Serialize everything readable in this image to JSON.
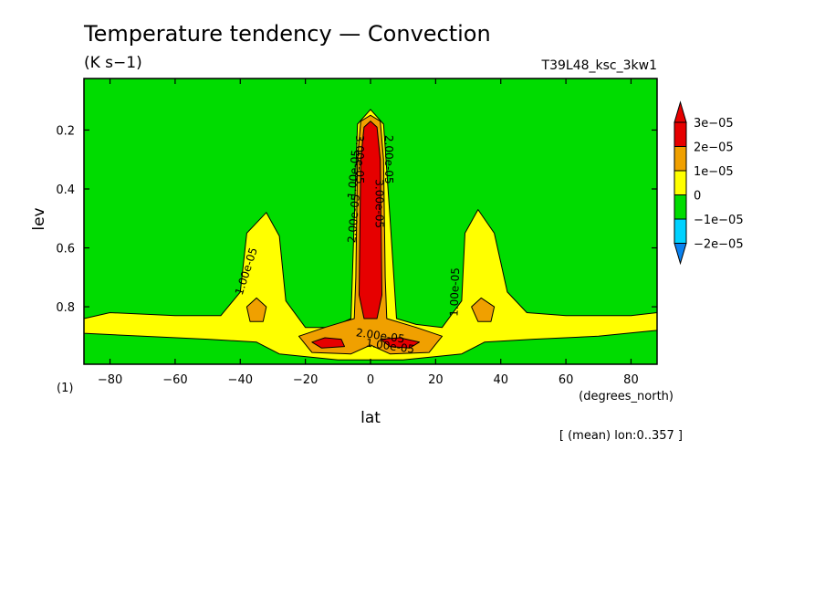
{
  "chart_data": {
    "type": "contour",
    "title": "Temperature tendency — Convection",
    "units": "(K s−1)",
    "run_label": "T39L48_ksc_3kw1",
    "xlabel": "lat",
    "x_units": "(degrees_north)",
    "ylabel": "lev",
    "y_units": "(1)",
    "subset_note": "[ (mean) lon:0..357 ]",
    "xlim": [
      -88,
      88
    ],
    "ylim": [
      0.995,
      0.025
    ],
    "y_inverted": true,
    "grid": false,
    "x_ticks": [
      -80,
      -60,
      -40,
      -20,
      0,
      20,
      40,
      60,
      80
    ],
    "x_tick_labels": [
      "−80",
      "−60",
      "−40",
      "−20",
      "0",
      "20",
      "40",
      "60",
      "80"
    ],
    "y_ticks": [
      0.2,
      0.4,
      0.6,
      0.8
    ],
    "y_tick_labels": [
      "0.2",
      "0.4",
      "0.6",
      "0.8"
    ],
    "colorbar": {
      "placement": "right",
      "levels": [
        -2e-05,
        -1e-05,
        0,
        1e-05,
        2e-05,
        3e-05
      ],
      "level_labels": [
        "−2e−05",
        "−1e−05",
        "0",
        "1e−05",
        "2e−05",
        "3e−05"
      ],
      "colors": [
        "#0a82f0",
        "#00d2ff",
        "#00dc00",
        "#ffff00",
        "#f0a000",
        "#e60000"
      ],
      "extend": "both"
    },
    "regions": [
      {
        "range": "0..1e-05",
        "color": "#00dc00",
        "shape": [
          [
            -88,
            0.025
          ],
          [
            88,
            0.025
          ],
          [
            88,
            0.995
          ],
          [
            -88,
            0.995
          ]
        ]
      },
      {
        "range": "1e-05..2e-05",
        "color": "#ffff00",
        "shape": [
          [
            -88,
            0.84
          ],
          [
            -80,
            0.82
          ],
          [
            -60,
            0.83
          ],
          [
            -46,
            0.83
          ],
          [
            -40,
            0.75
          ],
          [
            -38,
            0.55
          ],
          [
            -32,
            0.48
          ],
          [
            -28,
            0.56
          ],
          [
            -26,
            0.78
          ],
          [
            -20,
            0.87
          ],
          [
            -12,
            0.87
          ],
          [
            -6,
            0.84
          ],
          [
            -5,
            0.5
          ],
          [
            -4,
            0.18
          ],
          [
            0,
            0.13
          ],
          [
            4,
            0.18
          ],
          [
            6,
            0.5
          ],
          [
            8,
            0.84
          ],
          [
            14,
            0.86
          ],
          [
            22,
            0.87
          ],
          [
            28,
            0.78
          ],
          [
            29,
            0.55
          ],
          [
            33,
            0.47
          ],
          [
            38,
            0.55
          ],
          [
            42,
            0.75
          ],
          [
            48,
            0.82
          ],
          [
            60,
            0.83
          ],
          [
            80,
            0.83
          ],
          [
            88,
            0.82
          ],
          [
            88,
            0.88
          ],
          [
            70,
            0.9
          ],
          [
            50,
            0.91
          ],
          [
            35,
            0.92
          ],
          [
            28,
            0.96
          ],
          [
            10,
            0.98
          ],
          [
            -10,
            0.98
          ],
          [
            -28,
            0.96
          ],
          [
            -35,
            0.92
          ],
          [
            -50,
            0.91
          ],
          [
            -70,
            0.9
          ],
          [
            -88,
            0.89
          ]
        ]
      },
      {
        "range": "2e-05..3e-05",
        "color": "#f0a000",
        "shape": [
          [
            -4,
            0.3
          ],
          [
            -3,
            0.17
          ],
          [
            0,
            0.15
          ],
          [
            3,
            0.17
          ],
          [
            4,
            0.3
          ],
          [
            4.5,
            0.7
          ],
          [
            5,
            0.84
          ],
          [
            14,
            0.87
          ],
          [
            22,
            0.9
          ],
          [
            18,
            0.955
          ],
          [
            6,
            0.96
          ],
          [
            0,
            0.93
          ],
          [
            -6,
            0.96
          ],
          [
            -18,
            0.955
          ],
          [
            -22,
            0.9
          ],
          [
            -14,
            0.87
          ],
          [
            -5,
            0.84
          ],
          [
            -4.5,
            0.7
          ]
        ]
      },
      {
        "range": "2e-05..3e-05",
        "color": "#f0a000",
        "shape": [
          [
            -38,
            0.8
          ],
          [
            -35,
            0.77
          ],
          [
            -32,
            0.8
          ],
          [
            -33,
            0.85
          ],
          [
            -37,
            0.85
          ]
        ]
      },
      {
        "range": "2e-05..3e-05",
        "color": "#f0a000",
        "shape": [
          [
            31,
            0.8
          ],
          [
            34,
            0.77
          ],
          [
            38,
            0.8
          ],
          [
            37,
            0.85
          ],
          [
            33,
            0.85
          ]
        ]
      },
      {
        "range": "> 3e-05",
        "color": "#e60000",
        "shape": [
          [
            -3,
            0.3
          ],
          [
            -2,
            0.19
          ],
          [
            0,
            0.17
          ],
          [
            2,
            0.19
          ],
          [
            3,
            0.3
          ],
          [
            3.5,
            0.76
          ],
          [
            2,
            0.84
          ],
          [
            -2,
            0.84
          ],
          [
            -3.5,
            0.76
          ]
        ]
      },
      {
        "range": "> 3e-05",
        "color": "#e60000",
        "shape": [
          [
            -18,
            0.92
          ],
          [
            -14,
            0.905
          ],
          [
            -9,
            0.91
          ],
          [
            -8,
            0.935
          ],
          [
            -15,
            0.94
          ]
        ]
      },
      {
        "range": "> 3e-05",
        "color": "#e60000",
        "shape": [
          [
            3,
            0.91
          ],
          [
            9,
            0.905
          ],
          [
            15,
            0.92
          ],
          [
            12,
            0.94
          ],
          [
            6,
            0.935
          ]
        ]
      }
    ],
    "contour_labels": [
      {
        "text": "1.00e-05",
        "lat": -38,
        "lev": 0.68,
        "angle": -72
      },
      {
        "text": "1.00e-05",
        "lat": 26,
        "lev": 0.75,
        "angle": -88
      },
      {
        "text": "1.00e-05",
        "lat": -5,
        "lev": 0.35,
        "angle": -85
      },
      {
        "text": "2.00e-05",
        "lat": 3,
        "lev": 0.9,
        "angle": 8
      },
      {
        "text": "1.00e-05",
        "lat": 6,
        "lev": 0.935,
        "angle": 8
      },
      {
        "text": "2.00e-05",
        "lat": 5.5,
        "lev": 0.3,
        "angle": 90
      },
      {
        "text": "3.00e-05",
        "lat": 2.5,
        "lev": 0.45,
        "angle": 90
      },
      {
        "text": "3.00e-05",
        "lat": -3.5,
        "lev": 0.3,
        "angle": 90
      },
      {
        "text": "2.00e-05",
        "lat": -5,
        "lev": 0.5,
        "angle": -85
      }
    ]
  }
}
